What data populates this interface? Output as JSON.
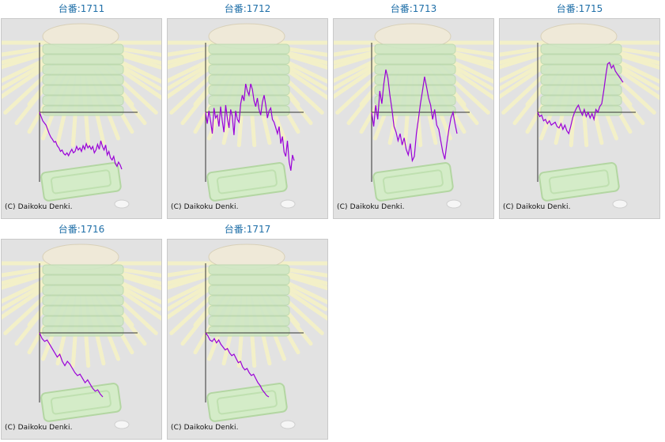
{
  "machines": [
    {
      "label": "台番:1711",
      "copyright": "(C) Daikoku Denki.",
      "series": [
        0,
        -6,
        -12,
        -15,
        -18,
        -24,
        -30,
        -35,
        -38,
        -42,
        -41,
        -47,
        -50,
        -55,
        -53,
        -58,
        -60,
        -57,
        -61,
        -56,
        -52,
        -57,
        -55,
        -48,
        -53,
        -50,
        -55,
        -47,
        -52,
        -44,
        -50,
        -47,
        -52,
        -48,
        -57,
        -53,
        -45,
        -52,
        -40,
        -48,
        -53,
        -46,
        -60,
        -55,
        -64,
        -67,
        -62,
        -72,
        -76,
        -70,
        -74,
        -80
      ]
    },
    {
      "label": "台番:1712",
      "copyright": "(C) Daikoku Denki.",
      "series": [
        0,
        -16,
        2,
        -12,
        -30,
        6,
        -8,
        -4,
        -20,
        8,
        -12,
        -28,
        10,
        -8,
        -22,
        4,
        -6,
        -32,
        2,
        -10,
        -14,
        12,
        24,
        16,
        40,
        30,
        24,
        40,
        32,
        16,
        8,
        20,
        4,
        -4,
        14,
        24,
        10,
        -8,
        2,
        6,
        -10,
        -14,
        -22,
        -30,
        -20,
        -44,
        -34,
        -56,
        -62,
        -40,
        -70,
        -82,
        -60,
        -68
      ]
    },
    {
      "label": "台番:1713",
      "copyright": "(C) Daikoku Denki.",
      "series": [
        0,
        -20,
        10,
        -10,
        30,
        12,
        40,
        60,
        48,
        24,
        4,
        -20,
        -28,
        -40,
        -30,
        -46,
        -36,
        -52,
        -60,
        -44,
        -68,
        -62,
        -30,
        -10,
        12,
        30,
        50,
        36,
        20,
        10,
        -10,
        4,
        -18,
        -24,
        -40,
        -56,
        -66,
        -44,
        -24,
        -8,
        0,
        -16,
        -30
      ]
    },
    {
      "label": "台番:1715",
      "copyright": "(C) Daikoku Denki.",
      "series": [
        0,
        -6,
        -4,
        -12,
        -10,
        -16,
        -12,
        -18,
        -16,
        -14,
        -20,
        -22,
        -16,
        -24,
        -18,
        -26,
        -30,
        -20,
        -8,
        0,
        6,
        10,
        2,
        -4,
        4,
        -6,
        0,
        -8,
        -2,
        -10,
        4,
        0,
        8,
        12,
        30,
        50,
        68,
        70,
        62,
        66,
        58,
        54,
        50,
        46,
        42
      ]
    },
    {
      "label": "台番:1716",
      "copyright": "(C) Daikoku Denki.",
      "series": [
        0,
        -8,
        -12,
        -10,
        -16,
        -22,
        -28,
        -34,
        -30,
        -40,
        -46,
        -40,
        -44,
        -50,
        -56,
        -60,
        -58,
        -64,
        -70,
        -66,
        -72,
        -78,
        -82,
        -80,
        -86,
        -90
      ]
    },
    {
      "label": "台番:1717",
      "copyright": "(C) Daikoku Denki.",
      "series": [
        0,
        -4,
        -10,
        -12,
        -8,
        -14,
        -10,
        -16,
        -20,
        -24,
        -22,
        -28,
        -32,
        -30,
        -36,
        -42,
        -40,
        -48,
        -52,
        -50,
        -56,
        -60,
        -58,
        -64,
        -70,
        -74,
        -80,
        -84,
        -88,
        -90
      ]
    }
  ],
  "colors": {
    "line": "#9a00d8",
    "axis": "#333333",
    "title": "#1f6fa8",
    "panel": "#e2e2e2"
  },
  "icons": {
    "background": "pachinko-sunburst-illustration"
  }
}
